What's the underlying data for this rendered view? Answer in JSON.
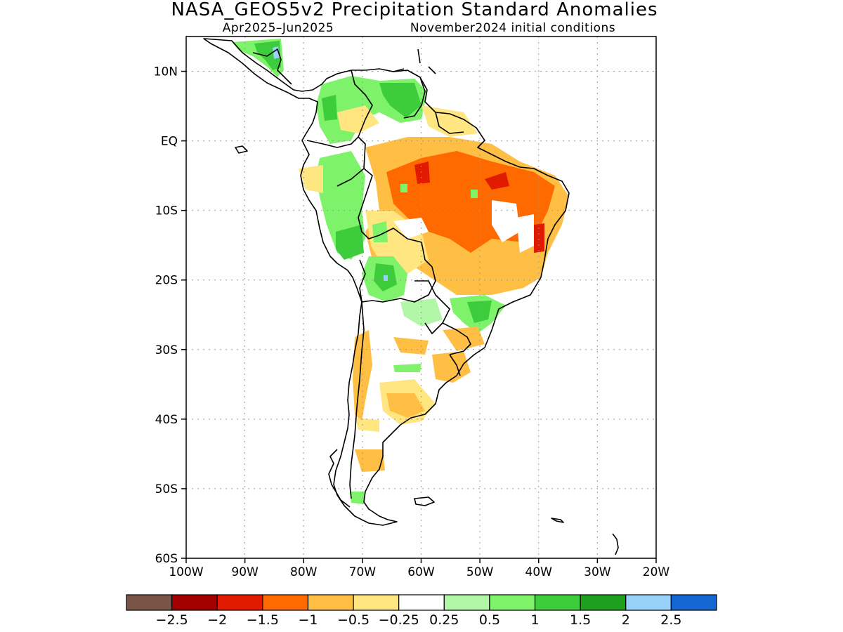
{
  "title": "NASA_GEOS5v2 Precipitation Standard Anomalies",
  "subtitle_period": "Apr2025–Jun2025",
  "subtitle_init": "November2024 initial conditions",
  "map": {
    "lon_range": [
      -100,
      -20
    ],
    "lat_range": [
      -60,
      15
    ],
    "lat_ticks": [
      "10N",
      "EQ",
      "10S",
      "20S",
      "30S",
      "40S",
      "50S",
      "60S"
    ],
    "lon_ticks": [
      "100W",
      "90W",
      "80W",
      "70W",
      "60W",
      "50W",
      "40W",
      "30W",
      "20W"
    ],
    "grid": "dotted"
  },
  "colorbar": {
    "labels": [
      "−2.5",
      "−2",
      "−1.5",
      "−1",
      "−0.5",
      "−0.25",
      "0.25",
      "0.5",
      "1",
      "1.5",
      "2",
      "2.5"
    ],
    "colors": [
      "#7a5446",
      "#a20000",
      "#e01b00",
      "#ff6a00",
      "#ffbf45",
      "#ffe680",
      "#ffffff",
      "#b2f7a8",
      "#7ef26a",
      "#3ccc3c",
      "#1ea01e",
      "#96d2fa",
      "#1466d2"
    ]
  },
  "anomaly_colors": {
    "brown": "#7a5446",
    "dark_red": "#a20000",
    "red": "#e01b00",
    "orange": "#ff6a00",
    "light_orange": "#ffbf45",
    "yellow": "#ffe680",
    "light_green": "#b2f7a8",
    "green": "#7ef26a",
    "mid_green": "#3ccc3c",
    "dark_green": "#1ea01e",
    "light_blue": "#96d2fa",
    "blue": "#1466d2"
  }
}
